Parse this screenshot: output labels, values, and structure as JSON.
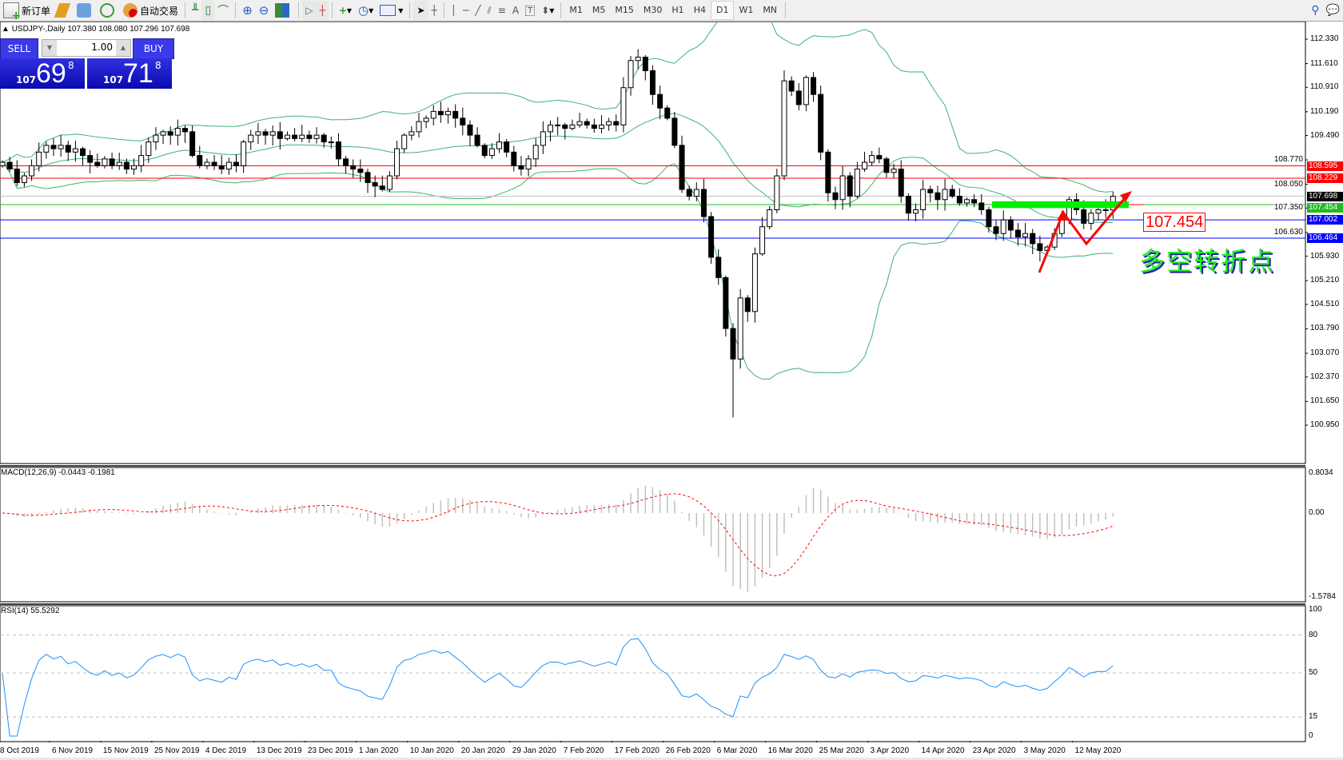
{
  "toolbar": {
    "new_order": "新订单",
    "auto_trading": "自动交易",
    "icons": [
      "new-order-icon",
      "market-watch-icon",
      "navigator-icon",
      "signals-icon",
      "auto-trading-icon",
      "bar-chart-icon",
      "candlestick-icon",
      "line-chart-icon",
      "zoom-in-icon",
      "zoom-out-icon",
      "tile-windows-icon",
      "autoscroll-icon",
      "chart-shift-icon",
      "indicators-icon",
      "periods-icon",
      "templates-icon",
      "cursor-icon",
      "crosshair-icon",
      "vertical-line-icon",
      "horizontal-line-icon",
      "trendline-icon",
      "equidistant-channel-icon",
      "fibonacci-icon",
      "text-icon",
      "text-label-icon",
      "arrows-icon",
      "search-icon",
      "chat-icon"
    ],
    "timeframes": [
      "M1",
      "M5",
      "M15",
      "M30",
      "H1",
      "H4",
      "D1",
      "W1",
      "MN"
    ],
    "active_timeframe": "D1"
  },
  "chart": {
    "title": "USDJPY-,Daily  107.380 108.080 107.296 107.698",
    "macd_label": "MACD(12,26,9) -0.0443 -0.1981",
    "rsi_label": "RSI(14) 55.5292"
  },
  "oneclick": {
    "sell": "SELL",
    "buy": "BUY",
    "lot": "1.00",
    "sell_price": {
      "prefix": "107",
      "big": "69",
      "sup": "8"
    },
    "buy_price": {
      "prefix": "107",
      "big": "71",
      "sup": "8"
    }
  },
  "annotation": {
    "price": "107.454",
    "text": "多空转折点"
  },
  "colors": {
    "resistance": "#ff0000",
    "support": "#0000ff",
    "pivot": "#00cc00",
    "bands": "#3cb371",
    "macd_hist": "#c0c0c0",
    "macd_signal": "#ff0000",
    "rsi": "#1e90ff",
    "price_tag": "#000000"
  },
  "chart_data": {
    "type": "candlestick",
    "symbol": "USDJPY-",
    "timeframe": "Daily",
    "price_ticks": [
      "112.330",
      "111.610",
      "110.910",
      "110.190",
      "109.490",
      "108.770",
      "108.050",
      "107.350",
      "106.630",
      "105.930",
      "105.210",
      "104.510",
      "103.790",
      "103.070",
      "102.370",
      "101.650",
      "100.950"
    ],
    "ylim": [
      100.95,
      112.33
    ],
    "date_labels": [
      "8 Oct 2019",
      "6 Nov 2019",
      "15 Nov 2019",
      "25 Nov 2019",
      "4 Dec 2019",
      "13 Dec 2019",
      "23 Dec 2019",
      "1 Jan 2020",
      "10 Jan 2020",
      "20 Jan 2020",
      "29 Jan 2020",
      "7 Feb 2020",
      "17 Feb 2020",
      "26 Feb 2020",
      "6 Mar 2020",
      "16 Mar 2020",
      "25 Mar 2020",
      "3 Apr 2020",
      "14 Apr 2020",
      "23 Apr 2020",
      "3 May 2020",
      "12 May 2020"
    ],
    "closes": [
      108.7,
      108.5,
      108.1,
      108.3,
      108.6,
      109.0,
      109.2,
      109.1,
      109.2,
      109.0,
      109.1,
      108.9,
      108.7,
      108.6,
      108.8,
      108.6,
      108.7,
      108.5,
      108.6,
      108.9,
      109.3,
      109.5,
      109.6,
      109.5,
      109.7,
      109.6,
      108.9,
      108.6,
      108.7,
      108.6,
      108.5,
      108.7,
      108.6,
      109.3,
      109.5,
      109.6,
      109.5,
      109.6,
      109.4,
      109.5,
      109.4,
      109.5,
      109.4,
      109.5,
      109.3,
      109.3,
      108.8,
      108.6,
      108.5,
      108.4,
      108.1,
      108.0,
      107.9,
      108.3,
      109.1,
      109.5,
      109.6,
      109.9,
      110.0,
      110.2,
      110.1,
      110.2,
      110.0,
      109.8,
      109.5,
      109.2,
      108.9,
      109.1,
      109.3,
      109.0,
      108.6,
      108.5,
      108.8,
      109.2,
      109.6,
      109.8,
      109.8,
      109.7,
      109.8,
      109.9,
      109.8,
      109.7,
      109.8,
      109.9,
      109.8,
      110.9,
      111.7,
      111.8,
      111.4,
      110.7,
      110.3,
      110.0,
      109.2,
      107.9,
      107.7,
      107.9,
      107.1,
      105.9,
      105.3,
      103.8,
      102.9,
      104.7,
      104.3,
      106.0,
      106.8,
      107.3,
      108.3,
      111.1,
      110.8,
      110.4,
      111.2,
      110.7,
      109.0,
      107.8,
      107.6,
      108.3,
      107.7,
      108.5,
      108.7,
      108.9,
      108.8,
      108.4,
      108.5,
      107.7,
      107.2,
      107.3,
      107.9,
      107.8,
      107.6,
      107.9,
      107.7,
      107.5,
      107.6,
      107.5,
      107.3,
      106.8,
      106.6,
      107.0,
      106.7,
      106.5,
      106.6,
      106.3,
      106.1,
      106.2,
      106.6,
      107.0,
      107.6,
      107.3,
      106.9,
      107.2,
      107.3,
      107.296,
      107.698
    ],
    "extreme_low": 101.18,
    "horizontal_levels": [
      {
        "price": "108.595",
        "color": "#ff0000"
      },
      {
        "price": "108.229",
        "color": "#ff0000"
      },
      {
        "price": "107.698",
        "color": "#000000"
      },
      {
        "price": "107.454",
        "color": "#22bb22"
      },
      {
        "price": "107.002",
        "color": "#0000ff"
      },
      {
        "price": "106.464",
        "color": "#0000ff"
      }
    ],
    "indicators": {
      "bollinger": {
        "period": 20,
        "deviation": 2
      },
      "macd": {
        "fast": 12,
        "slow": 26,
        "signal": 9,
        "ticks": [
          "0.8034",
          "0.00",
          "-1.5784"
        ],
        "range": [
          -1.5784,
          0.8034
        ]
      },
      "rsi": {
        "period": 14,
        "ticks": [
          "100",
          "80",
          "50",
          "15",
          "0"
        ],
        "levels": [
          80,
          50,
          15
        ]
      }
    }
  }
}
